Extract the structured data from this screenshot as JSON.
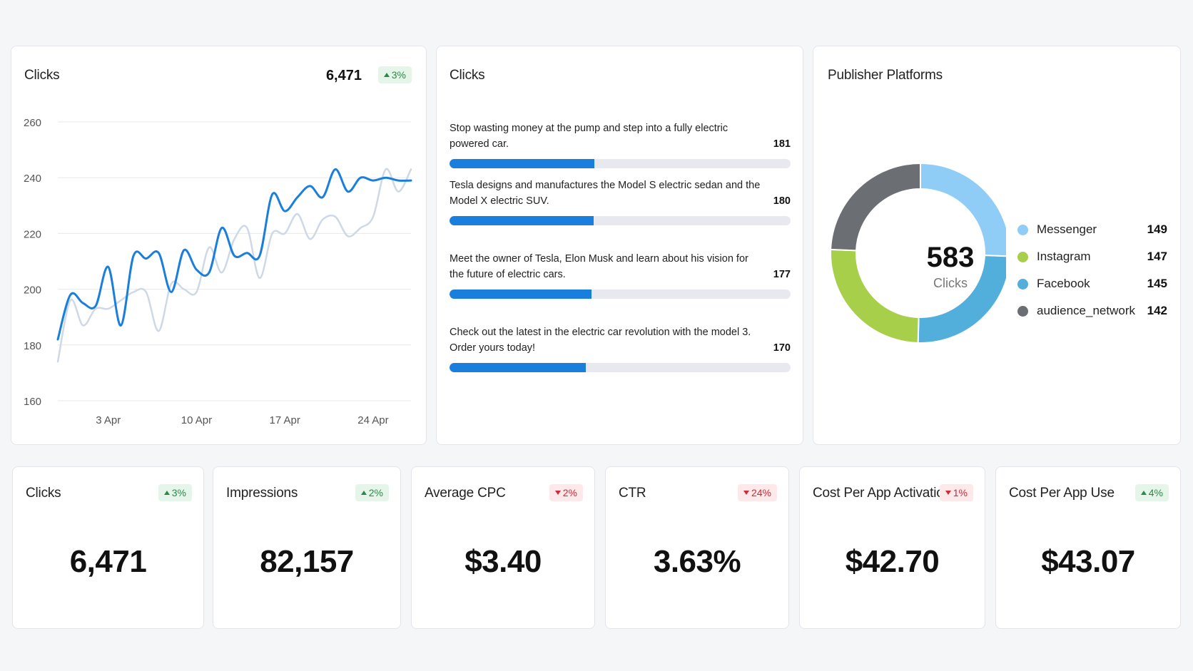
{
  "line_card": {
    "title": "Clicks",
    "total": "6,471",
    "change": "3%",
    "change_dir": "up"
  },
  "chart_data": {
    "type": "line",
    "title": "Clicks",
    "xlabel": "",
    "ylabel": "",
    "ylim": [
      160,
      260
    ],
    "y_ticks": [
      "260",
      "240",
      "220",
      "200",
      "180",
      "160"
    ],
    "x_tick_labels": [
      "3 Apr",
      "10 Apr",
      "17 Apr",
      "24 Apr"
    ],
    "x_tick_days": [
      3,
      10,
      17,
      24
    ],
    "x_range_days": [
      -1,
      27
    ],
    "grid": true,
    "series": [
      {
        "color": "#1a7fdc",
        "x": [
          -1,
          0,
          1,
          2,
          3,
          4,
          5,
          6,
          7,
          8,
          9,
          10,
          11,
          12,
          13,
          14,
          15,
          16,
          17,
          18,
          19,
          20,
          21,
          22,
          23,
          24,
          25,
          26,
          27
        ],
        "values": [
          182,
          198,
          195,
          194,
          208,
          187,
          212,
          211,
          213,
          199,
          214,
          207,
          206,
          222,
          212,
          213,
          212,
          234,
          228,
          233,
          237,
          233,
          243,
          235,
          240,
          239,
          240,
          239,
          239
        ]
      },
      {
        "color": "#cfd8e6",
        "x": [
          -1,
          0,
          1,
          2,
          3,
          4,
          5,
          6,
          7,
          8,
          9,
          10,
          11,
          12,
          13,
          14,
          15,
          16,
          17,
          18,
          19,
          20,
          21,
          22,
          23,
          24,
          25,
          26,
          27
        ],
        "values": [
          174,
          196,
          187,
          193,
          193,
          196,
          199,
          199,
          185,
          202,
          200,
          199,
          215,
          206,
          218,
          222,
          204,
          220,
          220,
          227,
          218,
          225,
          226,
          219,
          222,
          226,
          243,
          235,
          243
        ]
      }
    ]
  },
  "bars_card": {
    "title": "Clicks",
    "max": 426,
    "items": [
      {
        "text": "Stop wasting money at the pump and step into a fully electric powered car.",
        "value": 181
      },
      {
        "text": "Tesla designs and manufactures the Model S electric sedan and the Model X electric SUV.",
        "value": 180
      },
      {
        "text": "Meet the owner of Tesla, Elon Musk and learn about his vision for the future of electric cars.",
        "value": 177
      },
      {
        "text": "Check out the latest in the electric car revolution with the model 3. Order yours today!",
        "value": 170
      }
    ]
  },
  "donut_card": {
    "title": "Publisher Platforms",
    "total": "583",
    "total_label": "Clicks",
    "slices": [
      {
        "label": "Messenger",
        "value": 149,
        "color": "#8fcdf6"
      },
      {
        "label": "Facebook",
        "value": 145,
        "color": "#52aedb"
      },
      {
        "label": "Instagram",
        "value": 147,
        "color": "#a8cf4a"
      },
      {
        "label": "audience_network",
        "value": 142,
        "color": "#6b6e72"
      }
    ],
    "legend": [
      {
        "label": "Messenger",
        "value": "149",
        "color": "#8fcdf6"
      },
      {
        "label": "Instagram",
        "value": "147",
        "color": "#a8cf4a"
      },
      {
        "label": "Facebook",
        "value": "145",
        "color": "#52aedb"
      },
      {
        "label": "audience_network",
        "value": "142",
        "color": "#6b6e72"
      }
    ]
  },
  "kpis": [
    {
      "title": "Clicks",
      "value": "6,471",
      "change": "3%",
      "dir": "up"
    },
    {
      "title": "Impressions",
      "value": "82,157",
      "change": "2%",
      "dir": "up"
    },
    {
      "title": "Average CPC",
      "value": "$3.40",
      "change": "2%",
      "dir": "down"
    },
    {
      "title": "CTR",
      "value": "3.63%",
      "change": "24%",
      "dir": "down"
    },
    {
      "title": "Cost Per App Activation",
      "value": "$42.70",
      "change": "1%",
      "dir": "down"
    },
    {
      "title": "Cost Per App Use",
      "value": "$43.07",
      "change": "4%",
      "dir": "up"
    }
  ]
}
